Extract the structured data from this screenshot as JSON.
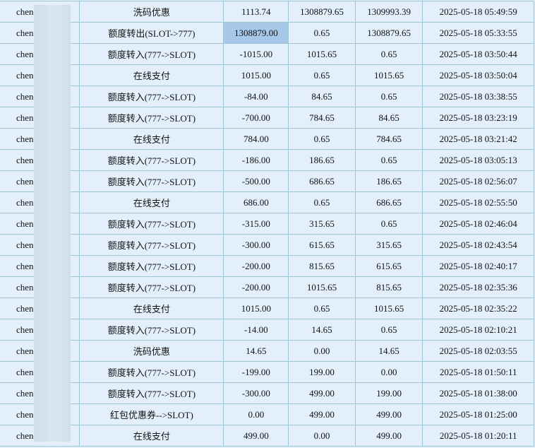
{
  "colors": {
    "background": "#e3f0fc",
    "border": "#9fc6d8",
    "selected_cell": "#a8c8ea"
  },
  "selected": {
    "row": 1,
    "col": "amount"
  },
  "rows": [
    {
      "user": "chen",
      "type": "洗码优惠",
      "amount": "1113.74",
      "before": "1308879.65",
      "after": "1309993.39",
      "time": "2025-05-18 05:49:59"
    },
    {
      "user": "chen",
      "type": "额度转出(SLOT->777)",
      "amount": "1308879.00",
      "before": "0.65",
      "after": "1308879.65",
      "time": "2025-05-18 05:33:55"
    },
    {
      "user": "chen",
      "type": "额度转入(777->SLOT)",
      "amount": "-1015.00",
      "before": "1015.65",
      "after": "0.65",
      "time": "2025-05-18 03:50:44"
    },
    {
      "user": "chen",
      "type": "在线支付",
      "amount": "1015.00",
      "before": "0.65",
      "after": "1015.65",
      "time": "2025-05-18 03:50:04"
    },
    {
      "user": "chen",
      "type": "额度转入(777->SLOT)",
      "amount": "-84.00",
      "before": "84.65",
      "after": "0.65",
      "time": "2025-05-18 03:38:55"
    },
    {
      "user": "chen",
      "type": "额度转入(777->SLOT)",
      "amount": "-700.00",
      "before": "784.65",
      "after": "84.65",
      "time": "2025-05-18 03:23:19"
    },
    {
      "user": "chen",
      "type": "在线支付",
      "amount": "784.00",
      "before": "0.65",
      "after": "784.65",
      "time": "2025-05-18 03:21:42"
    },
    {
      "user": "chen",
      "type": "额度转入(777->SLOT)",
      "amount": "-186.00",
      "before": "186.65",
      "after": "0.65",
      "time": "2025-05-18 03:05:13"
    },
    {
      "user": "chen",
      "type": "额度转入(777->SLOT)",
      "amount": "-500.00",
      "before": "686.65",
      "after": "186.65",
      "time": "2025-05-18 02:56:07"
    },
    {
      "user": "chen",
      "type": "在线支付",
      "amount": "686.00",
      "before": "0.65",
      "after": "686.65",
      "time": "2025-05-18 02:55:50"
    },
    {
      "user": "chen",
      "type": "额度转入(777->SLOT)",
      "amount": "-315.00",
      "before": "315.65",
      "after": "0.65",
      "time": "2025-05-18 02:46:04"
    },
    {
      "user": "chen",
      "type": "额度转入(777->SLOT)",
      "amount": "-300.00",
      "before": "615.65",
      "after": "315.65",
      "time": "2025-05-18 02:43:54"
    },
    {
      "user": "chen",
      "type": "额度转入(777->SLOT)",
      "amount": "-200.00",
      "before": "815.65",
      "after": "615.65",
      "time": "2025-05-18 02:40:17"
    },
    {
      "user": "chen",
      "type": "额度转入(777->SLOT)",
      "amount": "-200.00",
      "before": "1015.65",
      "after": "815.65",
      "time": "2025-05-18 02:35:36"
    },
    {
      "user": "chen",
      "type": "在线支付",
      "amount": "1015.00",
      "before": "0.65",
      "after": "1015.65",
      "time": "2025-05-18 02:35:22"
    },
    {
      "user": "chen",
      "type": "额度转入(777->SLOT)",
      "amount": "-14.00",
      "before": "14.65",
      "after": "0.65",
      "time": "2025-05-18 02:10:21"
    },
    {
      "user": "chen",
      "type": "洗码优惠",
      "amount": "14.65",
      "before": "0.00",
      "after": "14.65",
      "time": "2025-05-18 02:03:55"
    },
    {
      "user": "chen",
      "type": "额度转入(777->SLOT)",
      "amount": "-199.00",
      "before": "199.00",
      "after": "0.00",
      "time": "2025-05-18 01:50:11"
    },
    {
      "user": "chen",
      "type": "额度转入(777->SLOT)",
      "amount": "-300.00",
      "before": "499.00",
      "after": "199.00",
      "time": "2025-05-18 01:38:00"
    },
    {
      "user": "chen",
      "type": "红包优惠券-->SLOT)",
      "amount": "0.00",
      "before": "499.00",
      "after": "499.00",
      "time": "2025-05-18 01:25:00"
    },
    {
      "user": "chen",
      "type": "在线支付",
      "amount": "499.00",
      "before": "0.00",
      "after": "499.00",
      "time": "2025-05-18 01:20:11"
    }
  ]
}
